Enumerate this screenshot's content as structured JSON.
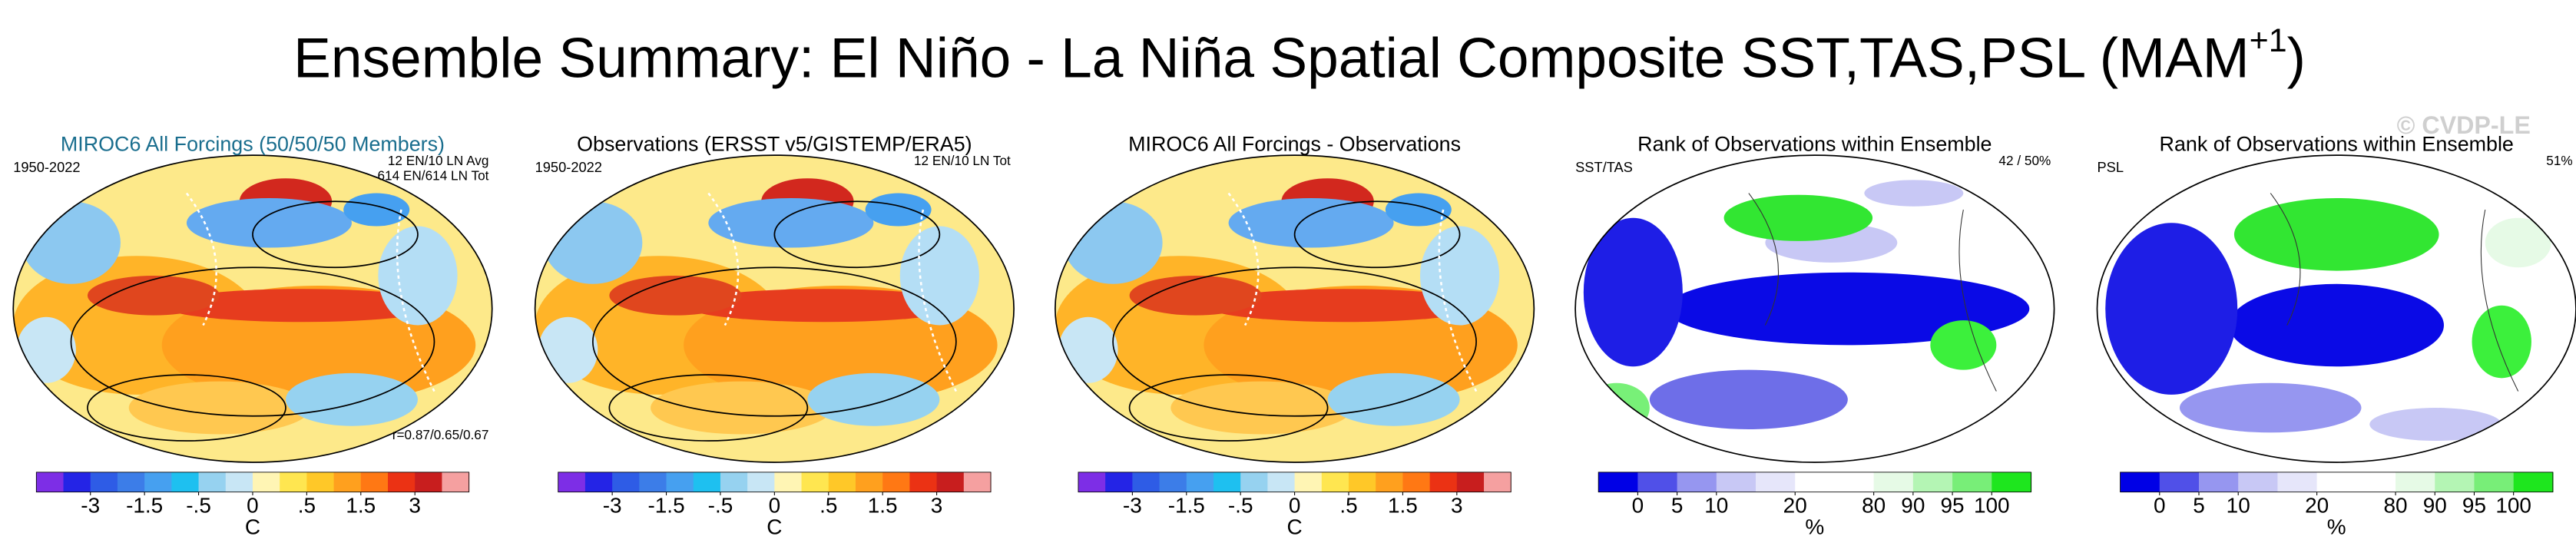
{
  "title": "Ensemble Summary: El Niño - La Niña Spatial Composite SST,TAS,PSL (MAM",
  "title_superscript": "+1",
  "title_end": ")",
  "watermark": "© CVDP-LE",
  "panels": [
    {
      "title": "MIROC6 All Forcings (50/50/50 Members)",
      "title_color": "#1a6e8e",
      "left_label": "1950-2022",
      "notes": [
        "12 EN/10 LN Avg",
        "614 EN/614 LN Tot"
      ],
      "bottom_note": "r=0.87/0.65/0.67",
      "colorbar": {
        "colors": [
          "#7d2ee6",
          "#2424e6",
          "#2e5ce6",
          "#3c7de8",
          "#46a0f0",
          "#1ec0f0",
          "#96d2f0",
          "#c8e6f5",
          "#fff5b4",
          "#ffe650",
          "#ffc828",
          "#ffa01e",
          "#ff7814",
          "#eb3214",
          "#c81e1e",
          "#f5a0a0"
        ],
        "levels": [
          -4,
          -3,
          -2,
          -1.5,
          -1,
          -0.5,
          -0.25,
          0,
          0.25,
          0.5,
          1,
          1.5,
          2,
          3,
          4
        ],
        "ticks": [
          -3,
          -1.5,
          {
            "value": -0.5,
            "label": "-.5"
          },
          0,
          {
            "value": 0.5,
            "label": ".5"
          },
          1.5,
          3
        ],
        "unit": "C"
      }
    },
    {
      "title": "Observations (ERSST v5/GISTEMP/ERA5)",
      "title_color": "#000000",
      "left_label": "1950-2022",
      "notes": [
        "12 EN/10 LN Tot"
      ],
      "colorbar": {
        "colors": [
          "#7d2ee6",
          "#2424e6",
          "#2e5ce6",
          "#3c7de8",
          "#46a0f0",
          "#1ec0f0",
          "#96d2f0",
          "#c8e6f5",
          "#fff5b4",
          "#ffe650",
          "#ffc828",
          "#ffa01e",
          "#ff7814",
          "#eb3214",
          "#c81e1e",
          "#f5a0a0"
        ],
        "levels": [
          -4,
          -3,
          -2,
          -1.5,
          -1,
          -0.5,
          -0.25,
          0,
          0.25,
          0.5,
          1,
          1.5,
          2,
          3,
          4
        ],
        "ticks": [
          -3,
          -1.5,
          {
            "value": -0.5,
            "label": "-.5"
          },
          0,
          {
            "value": 0.5,
            "label": ".5"
          },
          1.5,
          3
        ],
        "unit": "C"
      }
    },
    {
      "title": "MIROC6 All Forcings - Observations",
      "title_color": "#000000",
      "colorbar": {
        "colors": [
          "#7d2ee6",
          "#2424e6",
          "#2e5ce6",
          "#3c7de8",
          "#46a0f0",
          "#1ec0f0",
          "#96d2f0",
          "#c8e6f5",
          "#fff5b4",
          "#ffe650",
          "#ffc828",
          "#ffa01e",
          "#ff7814",
          "#eb3214",
          "#c81e1e",
          "#f5a0a0"
        ],
        "levels": [
          -4,
          -3,
          -2,
          -1.5,
          -1,
          -0.5,
          -0.25,
          0,
          0.25,
          0.5,
          1,
          1.5,
          2,
          3,
          4
        ],
        "ticks": [
          -3,
          -1.5,
          {
            "value": -0.5,
            "label": "-.5"
          },
          0,
          {
            "value": 0.5,
            "label": ".5"
          },
          1.5,
          3
        ],
        "unit": "C"
      }
    },
    {
      "title": "Rank of Observations within Ensemble",
      "title_color": "#000000",
      "left_label": "SST/TAS",
      "notes": [
        "42 /  50%"
      ],
      "colorbar": {
        "colors": [
          "#0000e6",
          "#5050e8",
          "#9696f0",
          "#c8c8f5",
          "#e6e6fa",
          "#ffffff",
          "#ffffff",
          "#e6fae6",
          "#b4f5b4",
          "#78ee78",
          "#1ee61e"
        ],
        "levels": [
          0,
          5,
          10,
          15,
          20,
          50,
          80,
          90,
          95,
          100
        ],
        "ticks": [
          0,
          5,
          10,
          20,
          80,
          90,
          95,
          100
        ],
        "unit": "%"
      }
    },
    {
      "title": "Rank of Observations within Ensemble",
      "title_color": "#000000",
      "left_label": "PSL",
      "notes": [
        "51%"
      ],
      "colorbar": {
        "colors": [
          "#0000e6",
          "#5050e8",
          "#9696f0",
          "#c8c8f5",
          "#e6e6fa",
          "#ffffff",
          "#ffffff",
          "#e6fae6",
          "#b4f5b4",
          "#78ee78",
          "#1ee61e"
        ],
        "levels": [
          0,
          5,
          10,
          15,
          20,
          50,
          80,
          90,
          95,
          100
        ],
        "ticks": [
          0,
          5,
          10,
          20,
          80,
          90,
          95,
          100
        ],
        "unit": "%"
      }
    }
  ]
}
